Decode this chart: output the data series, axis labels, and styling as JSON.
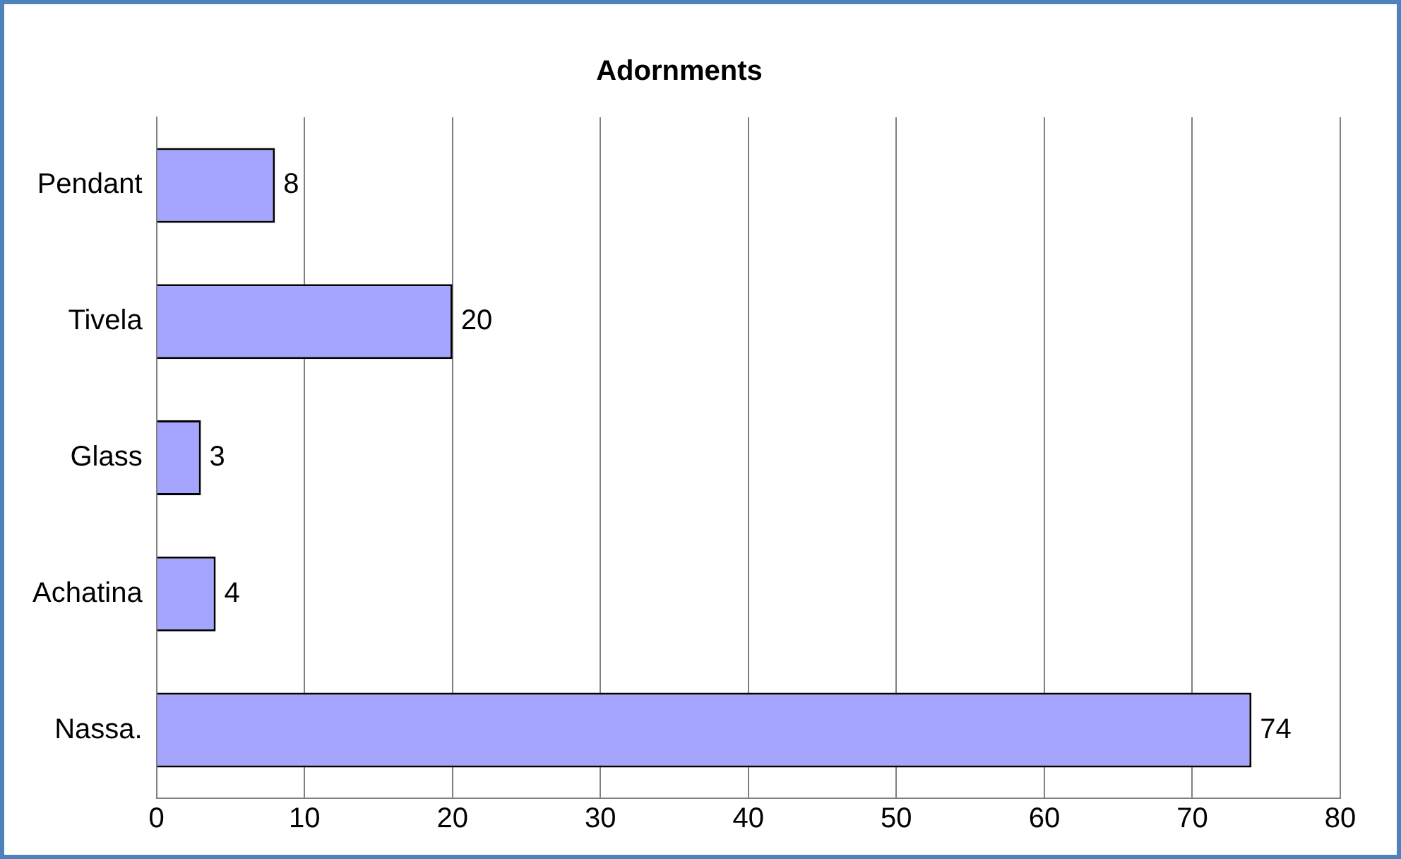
{
  "chart_data": {
    "type": "bar",
    "title": "Adornments",
    "orientation": "horizontal",
    "categories": [
      "Pendant",
      "Tivela",
      "Glass",
      "Achatina",
      "Nassa."
    ],
    "values": [
      8,
      20,
      3,
      4,
      74
    ],
    "color": "#a5a5ff",
    "xlim": [
      0,
      80
    ],
    "xticks": [
      0,
      10,
      20,
      30,
      40,
      50,
      60,
      70,
      80
    ],
    "grid": "x",
    "data_labels": true,
    "legend": false
  }
}
